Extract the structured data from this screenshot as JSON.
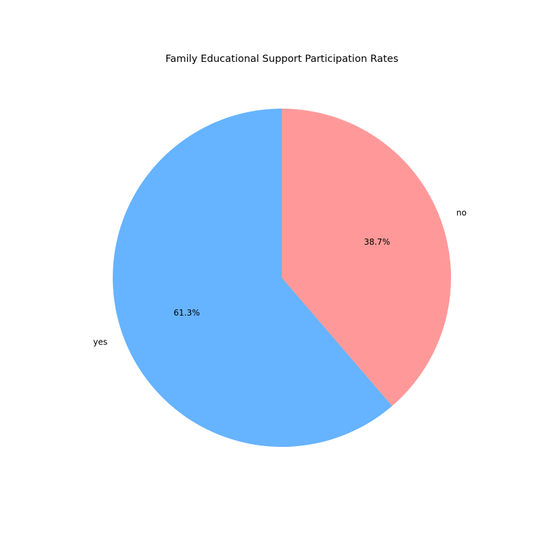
{
  "chart_data": {
    "type": "pie",
    "title": "Family Educational Support Participation Rates",
    "categories": [
      "yes",
      "no"
    ],
    "values": [
      61.3,
      38.7
    ],
    "value_labels": [
      "61.3%",
      "38.7%"
    ],
    "colors": [
      "#66b3ff",
      "#ff9999"
    ],
    "legend": "none"
  }
}
